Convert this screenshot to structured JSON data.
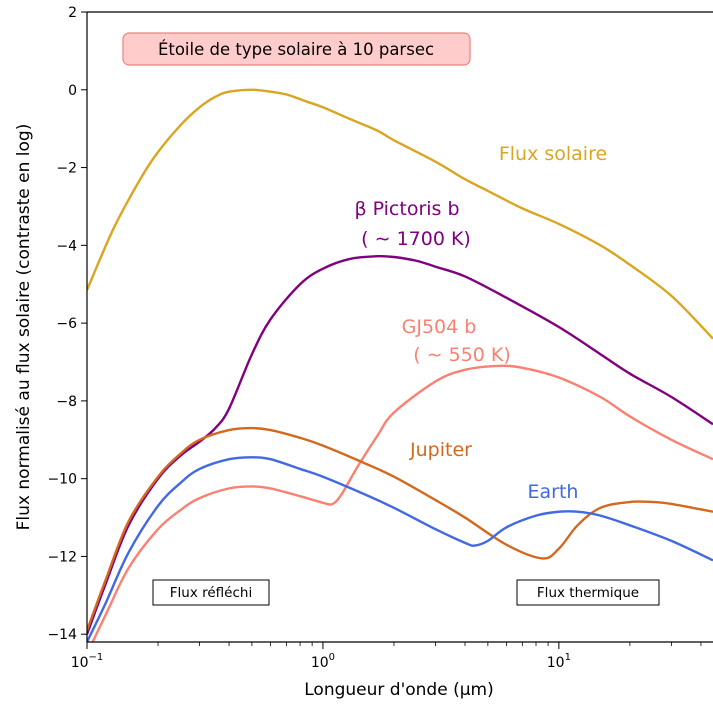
{
  "chart_data": {
    "type": "line",
    "title": "Étoile de type solaire à 10 parsec",
    "xlabel": "Longueur d'onde (µm)",
    "ylabel": "Flux normalisé au flux solaire (contraste en log)",
    "xscale": "log",
    "xlim": [
      0.1,
      45
    ],
    "ylim": [
      -14.2,
      2
    ],
    "x_ticks": [
      {
        "value": 0.1,
        "base": "10",
        "exp": "−1"
      },
      {
        "value": 1,
        "base": "10",
        "exp": "0"
      },
      {
        "value": 10,
        "base": "10",
        "exp": "1"
      }
    ],
    "y_ticks": [
      {
        "value": 2,
        "label": "2"
      },
      {
        "value": 0,
        "label": "0"
      },
      {
        "value": -2,
        "label": "−2"
      },
      {
        "value": -4,
        "label": "−4"
      },
      {
        "value": -6,
        "label": "−6"
      },
      {
        "value": -8,
        "label": "−8"
      },
      {
        "value": -10,
        "label": "−10"
      },
      {
        "value": -12,
        "label": "−12"
      },
      {
        "value": -14,
        "label": "−14"
      }
    ],
    "annotations": {
      "reflected": "Flux réfléchi",
      "thermal": "Flux thermique"
    },
    "series": [
      {
        "name": "Flux solaire",
        "color": "#DAA520",
        "label_lines": [
          "Flux solaire"
        ],
        "x": [
          0.1,
          0.13,
          0.17,
          0.2,
          0.25,
          0.3,
          0.35,
          0.4,
          0.5,
          0.6,
          0.7,
          0.85,
          1.0,
          1.3,
          1.7,
          2.0,
          3.0,
          4.0,
          5.0,
          7.0,
          10,
          15,
          20,
          30,
          45
        ],
        "y": [
          -5.15,
          -3.55,
          -2.25,
          -1.6,
          -0.9,
          -0.45,
          -0.18,
          -0.05,
          0.0,
          -0.05,
          -0.12,
          -0.3,
          -0.45,
          -0.75,
          -1.05,
          -1.3,
          -1.85,
          -2.3,
          -2.6,
          -3.05,
          -3.45,
          -4.0,
          -4.5,
          -5.3,
          -6.4
        ]
      },
      {
        "name": "β Pictoris b",
        "color": "#800080",
        "label_lines": [
          "β Pictoris b",
          "( ∼ 1700 K)"
        ],
        "x": [
          0.1,
          0.12,
          0.15,
          0.2,
          0.25,
          0.3,
          0.35,
          0.4,
          0.5,
          0.6,
          0.8,
          1.0,
          1.3,
          1.7,
          2.0,
          2.5,
          3.0,
          4.0,
          6.0,
          10,
          15,
          20,
          30,
          45
        ],
        "y": [
          -14.0,
          -12.7,
          -11.2,
          -10.0,
          -9.4,
          -9.05,
          -8.7,
          -8.2,
          -6.8,
          -5.9,
          -5.0,
          -4.6,
          -4.35,
          -4.28,
          -4.3,
          -4.4,
          -4.55,
          -4.8,
          -5.35,
          -6.1,
          -6.8,
          -7.3,
          -7.9,
          -8.6
        ]
      },
      {
        "name": "GJ504 b",
        "color": "#FA8072",
        "label_lines": [
          "GJ504 b",
          "( ∼ 550 K)"
        ],
        "x": [
          0.1,
          0.12,
          0.15,
          0.2,
          0.25,
          0.3,
          0.4,
          0.5,
          0.6,
          0.8,
          1.0,
          1.1,
          1.2,
          1.4,
          1.7,
          2.0,
          3.0,
          4.0,
          5.5,
          7.0,
          10,
          15,
          20,
          30,
          45
        ],
        "y": [
          -14.5,
          -13.5,
          -12.3,
          -11.3,
          -10.8,
          -10.5,
          -10.25,
          -10.2,
          -10.25,
          -10.45,
          -10.62,
          -10.65,
          -10.4,
          -9.7,
          -8.9,
          -8.3,
          -7.5,
          -7.2,
          -7.1,
          -7.15,
          -7.4,
          -7.9,
          -8.4,
          -9.0,
          -9.5
        ]
      },
      {
        "name": "Jupiter",
        "color": "#D2691E",
        "label_lines": [
          "Jupiter"
        ],
        "x": [
          0.1,
          0.12,
          0.15,
          0.2,
          0.25,
          0.3,
          0.4,
          0.5,
          0.6,
          0.8,
          1.0,
          1.5,
          2.0,
          3.0,
          4.0,
          6.0,
          8.5,
          10,
          12,
          15,
          20,
          25,
          30,
          45
        ],
        "y": [
          -13.9,
          -12.6,
          -11.1,
          -9.95,
          -9.35,
          -9.0,
          -8.75,
          -8.7,
          -8.75,
          -8.95,
          -9.15,
          -9.6,
          -9.95,
          -10.55,
          -11.0,
          -11.7,
          -12.05,
          -11.8,
          -11.2,
          -10.75,
          -10.6,
          -10.6,
          -10.65,
          -10.85
        ]
      },
      {
        "name": "Earth",
        "color": "#4169E1",
        "label_lines": [
          "Earth"
        ],
        "x": [
          0.1,
          0.12,
          0.15,
          0.2,
          0.25,
          0.3,
          0.4,
          0.5,
          0.6,
          0.8,
          1.0,
          1.5,
          2.0,
          3.0,
          4.0,
          4.4,
          5.0,
          6.0,
          8.0,
          10,
          12,
          15,
          20,
          30,
          45
        ],
        "y": [
          -14.2,
          -13.2,
          -11.9,
          -10.7,
          -10.1,
          -9.75,
          -9.5,
          -9.45,
          -9.5,
          -9.75,
          -9.95,
          -10.4,
          -10.75,
          -11.3,
          -11.65,
          -11.72,
          -11.6,
          -11.25,
          -10.95,
          -10.85,
          -10.85,
          -10.95,
          -11.2,
          -11.6,
          -12.1
        ]
      }
    ]
  }
}
